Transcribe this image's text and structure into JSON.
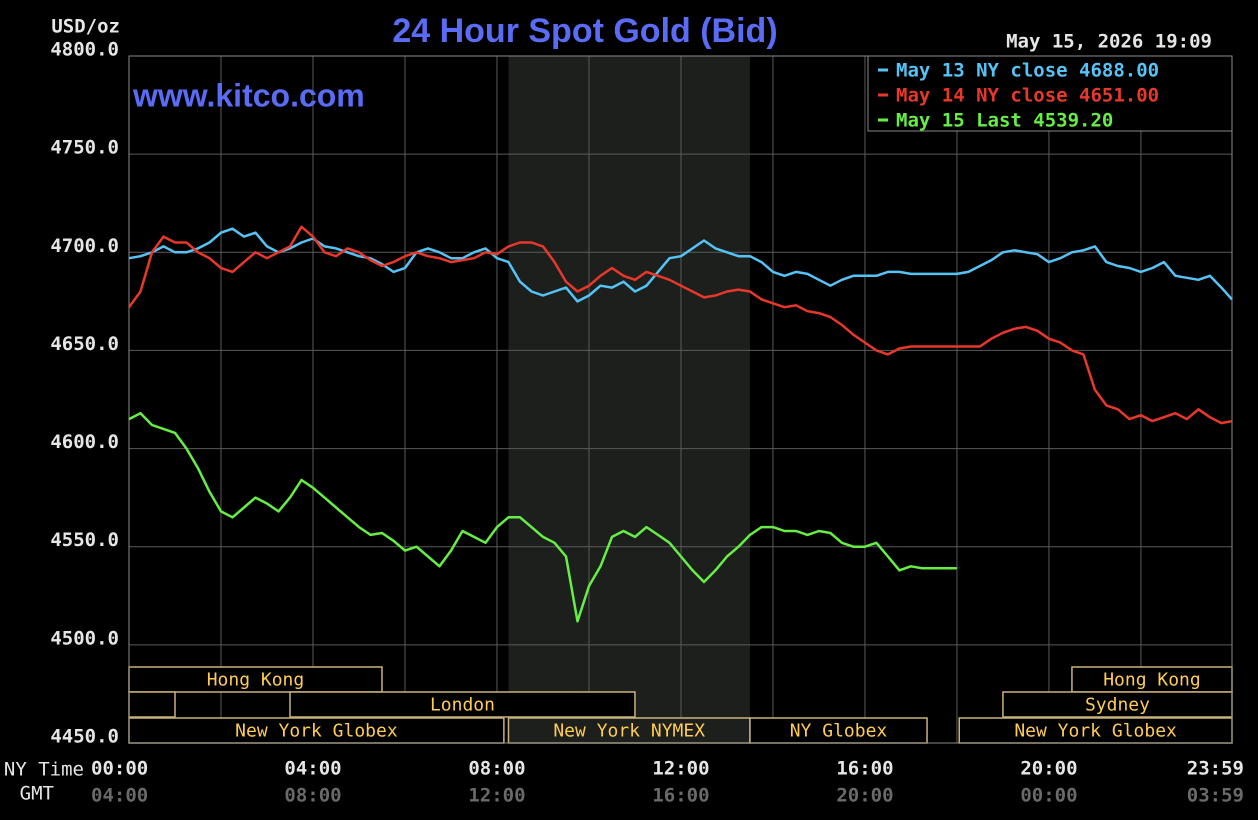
{
  "chart_data": {
    "type": "line",
    "title": "24 Hour Spot Gold (Bid)",
    "watermark": "www.kitco.com",
    "timestamp": "May 15, 2026 19:09",
    "y_label": "USD/oz",
    "x_label": "NY Time",
    "x2_label": "GMT",
    "grid": true,
    "legend": "top-right",
    "background": "#000000",
    "xlim": [
      0,
      23.98
    ],
    "ylim": [
      4450,
      4800
    ],
    "yticks": [
      {
        "value": 4450,
        "label": "4450.0"
      },
      {
        "value": 4500,
        "label": "4500.0"
      },
      {
        "value": 4550,
        "label": "4550.0"
      },
      {
        "value": 4600,
        "label": "4600.0"
      },
      {
        "value": 4650,
        "label": "4650.0"
      },
      {
        "value": 4700,
        "label": "4700.0"
      },
      {
        "value": 4750,
        "label": "4750.0"
      },
      {
        "value": 4800,
        "label": "4800.0"
      }
    ],
    "xticks": [
      {
        "value": 0,
        "label": "00:00"
      },
      {
        "value": 2,
        "label": null
      },
      {
        "value": 4,
        "label": "04:00"
      },
      {
        "value": 6,
        "label": null
      },
      {
        "value": 8,
        "label": "08:00"
      },
      {
        "value": 10,
        "label": null
      },
      {
        "value": 12,
        "label": "12:00"
      },
      {
        "value": 14,
        "label": null
      },
      {
        "value": 16,
        "label": "16:00"
      },
      {
        "value": 18,
        "label": null
      },
      {
        "value": 20,
        "label": "20:00"
      },
      {
        "value": 22,
        "label": null
      },
      {
        "value": 23.98,
        "label": "23:59"
      }
    ],
    "gmt_labels": [
      "04:00",
      null,
      "08:00",
      null,
      "12:00",
      null,
      "16:00",
      null,
      "20:00",
      null,
      "00:00",
      null,
      "03:59"
    ],
    "sessions": [
      {
        "label": "Hong Kong",
        "row": 0,
        "start": 0,
        "end": 5.5
      },
      {
        "label": "Hong Kong",
        "row": 0,
        "start": 20.5,
        "end": 23.98
      },
      {
        "label": null,
        "row": 1,
        "start": 0,
        "end": 1.0
      },
      {
        "label": "London",
        "row": 1,
        "start": 3.5,
        "end": 11.0
      },
      {
        "label": "Sydney",
        "row": 1,
        "start": 19.0,
        "end": 23.98
      },
      {
        "label": "New York Globex",
        "row": 2,
        "start": 0,
        "end": 8.15
      },
      {
        "label": "New York NYMEX",
        "row": 2,
        "start": 8.25,
        "end": 13.5,
        "shaded": true
      },
      {
        "label": "NY Globex",
        "row": 2,
        "start": 13.5,
        "end": 17.35
      },
      {
        "label": "New York Globex",
        "row": 2,
        "start": 18.05,
        "end": 23.98
      }
    ],
    "x": [
      0,
      0.25,
      0.5,
      0.75,
      1,
      1.25,
      1.5,
      1.75,
      2,
      2.25,
      2.5,
      2.75,
      3,
      3.25,
      3.5,
      3.75,
      4,
      4.25,
      4.5,
      4.75,
      5,
      5.25,
      5.5,
      5.75,
      6,
      6.25,
      6.5,
      6.75,
      7,
      7.25,
      7.5,
      7.75,
      8,
      8.25,
      8.5,
      8.75,
      9,
      9.25,
      9.5,
      9.75,
      10,
      10.25,
      10.5,
      10.75,
      11,
      11.25,
      11.5,
      11.75,
      12,
      12.25,
      12.5,
      12.75,
      13,
      13.25,
      13.5,
      13.75,
      14,
      14.25,
      14.5,
      14.75,
      15,
      15.25,
      15.5,
      15.75,
      16,
      16.25,
      16.5,
      16.75,
      17,
      17.25,
      17.5,
      17.75,
      18,
      18.25,
      18.5,
      18.75,
      19,
      19.25,
      19.5,
      19.75,
      20,
      20.25,
      20.5,
      20.75,
      21,
      21.25,
      21.5,
      21.75,
      22,
      22.25,
      22.5,
      22.75,
      23,
      23.25,
      23.5,
      23.75,
      23.98
    ],
    "series": [
      {
        "name": "May 13 NY close 4688.00",
        "color": "#55c3f5",
        "values": [
          4697,
          4698,
          4700,
          4703,
          4700,
          4700,
          4702,
          4705,
          4710,
          4712,
          4708,
          4710,
          4703,
          4700,
          4702,
          4705,
          4707,
          4703,
          4702,
          4700,
          4698,
          4697,
          4694,
          4690,
          4692,
          4700,
          4702,
          4700,
          4697,
          4697,
          4700,
          4702,
          4697,
          4695,
          4685,
          4680,
          4678,
          4680,
          4682,
          4675,
          4678,
          4683,
          4682,
          4685,
          4680,
          4683,
          4690,
          4697,
          4698,
          4702,
          4706,
          4702,
          4700,
          4698,
          4698,
          4695,
          4690,
          4688,
          4690,
          4689,
          4686,
          4683,
          4686,
          4688,
          4688,
          4688,
          4690,
          4690,
          4689,
          4689,
          4689,
          4689,
          4689,
          4690,
          4693,
          4696,
          4700,
          4701,
          4700,
          4699,
          4695,
          4697,
          4700,
          4701,
          4703,
          4695,
          4693,
          4692,
          4690,
          4692,
          4695,
          4688,
          4687,
          4686,
          4688,
          4682,
          4676
        ]
      },
      {
        "name": "May 14 NY close 4651.00",
        "color": "#e8372b",
        "values": [
          4672,
          4680,
          4700,
          4708,
          4705,
          4705,
          4700,
          4697,
          4692,
          4690,
          4695,
          4700,
          4697,
          4700,
          4703,
          4713,
          4708,
          4700,
          4698,
          4702,
          4700,
          4696,
          4693,
          4695,
          4698,
          4700,
          4698,
          4697,
          4695,
          4696,
          4697,
          4700,
          4699,
          4703,
          4705,
          4705,
          4703,
          4695,
          4685,
          4680,
          4683,
          4688,
          4692,
          4688,
          4686,
          4690,
          4688,
          4686,
          4683,
          4680,
          4677,
          4678,
          4680,
          4681,
          4680,
          4676,
          4674,
          4672,
          4673,
          4670,
          4669,
          4667,
          4663,
          4658,
          4654,
          4650,
          4648,
          4651,
          4652,
          4652,
          4652,
          4652,
          4652,
          4652,
          4652,
          4656,
          4659,
          4661,
          4662,
          4660,
          4656,
          4654,
          4650,
          4648,
          4630,
          4622,
          4620,
          4615,
          4617,
          4614,
          4616,
          4618,
          4615,
          4620,
          4616,
          4613,
          4614
        ]
      },
      {
        "name": "May 15 Last 4539.20",
        "color": "#66ee44",
        "values": [
          4615,
          4618,
          4612,
          4610,
          4608,
          4600,
          4590,
          4578,
          4568,
          4565,
          4570,
          4575,
          4572,
          4568,
          4575,
          4584,
          4580,
          4575,
          4570,
          4565,
          4560,
          4556,
          4557,
          4553,
          4548,
          4550,
          4545,
          4540,
          4548,
          4558,
          4555,
          4552,
          4560,
          4565,
          4565,
          4560,
          4555,
          4552,
          4545,
          4512,
          4530,
          4540,
          4555,
          4558,
          4555,
          4560,
          4556,
          4552,
          4545,
          4538,
          4532,
          4538,
          4545,
          4550,
          4556,
          4560,
          4560,
          4558,
          4558,
          4556,
          4558,
          4557,
          4552,
          4550,
          4550,
          4552,
          4545,
          4538,
          4540,
          4539,
          4539,
          4539,
          4539,
          null,
          null,
          null,
          null,
          null,
          null,
          null,
          null,
          null,
          null,
          null,
          null,
          null,
          null,
          null,
          null,
          null,
          null,
          null,
          null,
          null,
          null,
          null,
          null
        ]
      }
    ]
  }
}
